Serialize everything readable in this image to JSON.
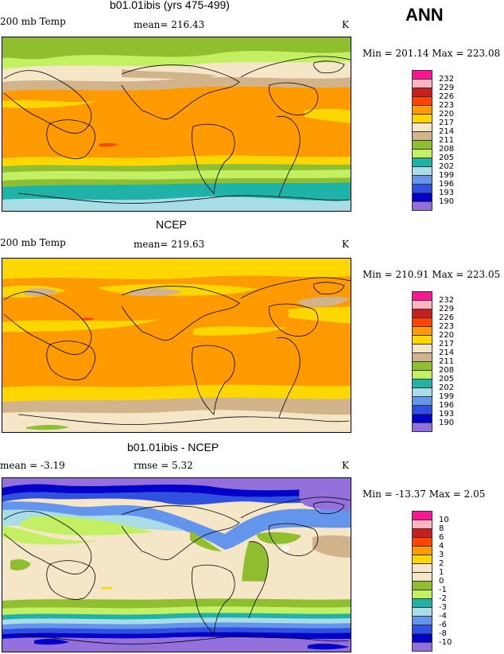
{
  "season_label": "ANN",
  "chart_data": [
    {
      "type": "heatmap",
      "title": "b01.01ibis (yrs 475-499)",
      "left_label": "200 mb Temp",
      "center_label": "mean= 216.43",
      "right_label": "K",
      "min_max_label": "Min = 201.14 Max = 223.08",
      "legend_levels": [
        "232",
        "229",
        "226",
        "223",
        "220",
        "217",
        "214",
        "211",
        "208",
        "205",
        "202",
        "199",
        "196",
        "193",
        "190"
      ],
      "legend_colors": [
        "#ff1493",
        "#ffb6c1",
        "#c81e1e",
        "#ff4500",
        "#ff9a00",
        "#ffd700",
        "#f5e6c8",
        "#d2b48c",
        "#8fbf2f",
        "#c3ef63",
        "#1fb2a6",
        "#a8dce6",
        "#6495ed",
        "#3050e0",
        "#0000c8",
        "#9370db"
      ]
    },
    {
      "type": "heatmap",
      "title": "NCEP",
      "left_label": "200 mb Temp",
      "center_label": "mean= 219.63",
      "right_label": "K",
      "min_max_label": "Min = 210.91 Max = 223.05",
      "legend_levels": [
        "232",
        "229",
        "226",
        "223",
        "220",
        "217",
        "214",
        "211",
        "208",
        "205",
        "202",
        "199",
        "196",
        "193",
        "190"
      ],
      "legend_colors": [
        "#ff1493",
        "#ffb6c1",
        "#c81e1e",
        "#ff4500",
        "#ff9a00",
        "#ffd700",
        "#f5e6c8",
        "#d2b48c",
        "#8fbf2f",
        "#c3ef63",
        "#1fb2a6",
        "#a8dce6",
        "#6495ed",
        "#3050e0",
        "#0000c8",
        "#9370db"
      ]
    },
    {
      "type": "heatmap",
      "title": "b01.01ibis - NCEP",
      "left_label": "mean =   -3.19",
      "center_label": "rmse =    5.32",
      "right_label": "K",
      "min_max_label": "Min = -13.37 Max =    2.05",
      "legend_levels": [
        "10",
        "8",
        "6",
        "4",
        "3",
        "2",
        "1",
        "0",
        "-1",
        "-2",
        "-3",
        "-4",
        "-6",
        "-8",
        "-10"
      ],
      "legend_colors": [
        "#ff1493",
        "#ffb6c1",
        "#c81e1e",
        "#ff4500",
        "#ff9a00",
        "#ffd700",
        "#f5e6c8",
        "#f5e6c8",
        "#8fbf2f",
        "#c3ef63",
        "#1fb2a6",
        "#a8dce6",
        "#6495ed",
        "#3050e0",
        "#0000c8",
        "#9370db"
      ]
    }
  ]
}
